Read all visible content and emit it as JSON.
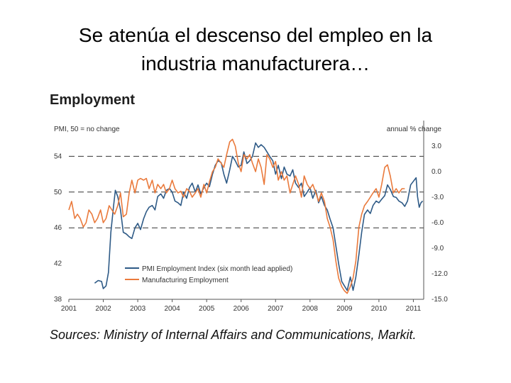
{
  "slide": {
    "title_line1": "Se atenúa el descenso del empleo en la",
    "title_line2": "industria manufacturera…"
  },
  "chart_heading": "Employment",
  "sources_text": "Sources: Ministry of Internal Affairs and Communications, Markit.",
  "colors": {
    "pmi": "#2e5a86",
    "mfg": "#ea7a3c",
    "axis": "#555555",
    "dash": "#333333"
  },
  "chart_data": {
    "type": "line",
    "title": "Employment",
    "left_axis_label": "PMI, 50 = no change",
    "right_axis_label": "annual % change",
    "left_ylim": [
      38,
      58
    ],
    "left_ticks": [
      "38",
      "42",
      "46",
      "50",
      "54"
    ],
    "right_ylim": [
      -15,
      6
    ],
    "right_ticks": [
      "-15.0",
      "-12.0",
      "-9.0",
      "-6.0",
      "-3.0",
      "0.0",
      "3.0"
    ],
    "xlim": [
      2001.0,
      2011.3
    ],
    "x_ticks": [
      "2001",
      "2002",
      "2003",
      "2004",
      "2005",
      "2006",
      "2007",
      "2008",
      "2009",
      "2010",
      "2011"
    ],
    "dashed_reference_levels": [
      54,
      50,
      46
    ],
    "series": [
      {
        "name": "PMI Employment Index (six month lead applied)",
        "axis": "left",
        "points": [
          [
            2001.75,
            39.8
          ],
          [
            2001.85,
            40.1
          ],
          [
            2001.95,
            40.0
          ],
          [
            2002.0,
            39.2
          ],
          [
            2002.08,
            39.5
          ],
          [
            2002.15,
            41.0
          ],
          [
            2002.22,
            45.5
          ],
          [
            2002.3,
            48.5
          ],
          [
            2002.35,
            50.2
          ],
          [
            2002.42,
            49.5
          ],
          [
            2002.5,
            48.0
          ],
          [
            2002.58,
            45.5
          ],
          [
            2002.67,
            45.3
          ],
          [
            2002.75,
            45.0
          ],
          [
            2002.83,
            44.8
          ],
          [
            2002.92,
            46.0
          ],
          [
            2003.0,
            46.5
          ],
          [
            2003.08,
            45.8
          ],
          [
            2003.17,
            47.0
          ],
          [
            2003.25,
            47.8
          ],
          [
            2003.33,
            48.3
          ],
          [
            2003.42,
            48.5
          ],
          [
            2003.5,
            48.0
          ],
          [
            2003.58,
            49.5
          ],
          [
            2003.67,
            49.8
          ],
          [
            2003.75,
            49.3
          ],
          [
            2003.83,
            50.2
          ],
          [
            2003.92,
            50.4
          ],
          [
            2004.0,
            50.0
          ],
          [
            2004.08,
            49.0
          ],
          [
            2004.17,
            48.8
          ],
          [
            2004.25,
            48.5
          ],
          [
            2004.33,
            50.0
          ],
          [
            2004.42,
            49.3
          ],
          [
            2004.5,
            50.5
          ],
          [
            2004.58,
            51.0
          ],
          [
            2004.67,
            50.0
          ],
          [
            2004.75,
            50.8
          ],
          [
            2004.83,
            49.8
          ],
          [
            2004.92,
            50.5
          ],
          [
            2005.0,
            51.0
          ],
          [
            2005.08,
            50.6
          ],
          [
            2005.17,
            52.0
          ],
          [
            2005.25,
            53.0
          ],
          [
            2005.33,
            53.5
          ],
          [
            2005.42,
            53.3
          ],
          [
            2005.5,
            52.0
          ],
          [
            2005.58,
            51.0
          ],
          [
            2005.67,
            52.5
          ],
          [
            2005.75,
            54.0
          ],
          [
            2005.83,
            53.5
          ],
          [
            2005.92,
            52.8
          ],
          [
            2006.0,
            53.0
          ],
          [
            2006.08,
            54.5
          ],
          [
            2006.17,
            53.2
          ],
          [
            2006.25,
            53.5
          ],
          [
            2006.33,
            54.0
          ],
          [
            2006.42,
            55.5
          ],
          [
            2006.5,
            55.0
          ],
          [
            2006.58,
            55.3
          ],
          [
            2006.67,
            55.0
          ],
          [
            2006.75,
            54.5
          ],
          [
            2006.83,
            54.0
          ],
          [
            2006.92,
            53.5
          ],
          [
            2007.0,
            52.0
          ],
          [
            2007.08,
            53.0
          ],
          [
            2007.17,
            51.5
          ],
          [
            2007.25,
            52.8
          ],
          [
            2007.33,
            52.0
          ],
          [
            2007.42,
            51.8
          ],
          [
            2007.5,
            52.5
          ],
          [
            2007.58,
            51.0
          ],
          [
            2007.67,
            50.5
          ],
          [
            2007.75,
            51.0
          ],
          [
            2007.83,
            49.5
          ],
          [
            2007.92,
            50.0
          ],
          [
            2008.0,
            50.5
          ],
          [
            2008.08,
            49.3
          ],
          [
            2008.17,
            50.2
          ],
          [
            2008.25,
            48.8
          ],
          [
            2008.33,
            49.5
          ],
          [
            2008.42,
            48.5
          ],
          [
            2008.5,
            48.0
          ],
          [
            2008.58,
            47.0
          ],
          [
            2008.67,
            46.0
          ],
          [
            2008.75,
            44.0
          ],
          [
            2008.83,
            42.0
          ],
          [
            2008.92,
            40.0
          ],
          [
            2009.0,
            39.5
          ],
          [
            2009.08,
            39.0
          ],
          [
            2009.17,
            40.5
          ],
          [
            2009.25,
            39.0
          ],
          [
            2009.33,
            40.5
          ],
          [
            2009.42,
            43.0
          ],
          [
            2009.5,
            45.5
          ],
          [
            2009.58,
            47.5
          ],
          [
            2009.67,
            48.0
          ],
          [
            2009.75,
            47.6
          ],
          [
            2009.83,
            48.5
          ],
          [
            2009.92,
            49.0
          ],
          [
            2010.0,
            48.8
          ],
          [
            2010.08,
            49.2
          ],
          [
            2010.17,
            49.6
          ],
          [
            2010.25,
            50.8
          ],
          [
            2010.33,
            50.3
          ],
          [
            2010.42,
            49.5
          ],
          [
            2010.5,
            49.4
          ],
          [
            2010.58,
            49.0
          ],
          [
            2010.67,
            48.8
          ],
          [
            2010.75,
            48.4
          ],
          [
            2010.83,
            49.0
          ],
          [
            2010.92,
            50.8
          ],
          [
            2011.0,
            51.2
          ],
          [
            2011.08,
            51.6
          ],
          [
            2011.12,
            49.5
          ],
          [
            2011.17,
            48.3
          ],
          [
            2011.22,
            48.8
          ],
          [
            2011.27,
            49.0
          ]
        ]
      },
      {
        "name": "Manufacturing Employment",
        "axis": "right",
        "points": [
          [
            2001.0,
            -4.5
          ],
          [
            2001.08,
            -3.5
          ],
          [
            2001.17,
            -5.5
          ],
          [
            2001.25,
            -5.0
          ],
          [
            2001.33,
            -5.5
          ],
          [
            2001.42,
            -6.5
          ],
          [
            2001.5,
            -6.0
          ],
          [
            2001.58,
            -4.5
          ],
          [
            2001.67,
            -5.0
          ],
          [
            2001.75,
            -6.0
          ],
          [
            2001.83,
            -5.5
          ],
          [
            2001.92,
            -4.5
          ],
          [
            2002.0,
            -6.0
          ],
          [
            2002.08,
            -5.5
          ],
          [
            2002.17,
            -4.0
          ],
          [
            2002.25,
            -4.5
          ],
          [
            2002.33,
            -5.0
          ],
          [
            2002.42,
            -4.0
          ],
          [
            2002.5,
            -2.5
          ],
          [
            2002.58,
            -5.3
          ],
          [
            2002.67,
            -5.0
          ],
          [
            2002.75,
            -2.5
          ],
          [
            2002.83,
            -1.0
          ],
          [
            2002.92,
            -2.5
          ],
          [
            2003.0,
            -1.0
          ],
          [
            2003.08,
            -0.8
          ],
          [
            2003.17,
            -1.0
          ],
          [
            2003.25,
            -0.8
          ],
          [
            2003.33,
            -2.0
          ],
          [
            2003.42,
            -1.0
          ],
          [
            2003.5,
            -2.5
          ],
          [
            2003.58,
            -1.5
          ],
          [
            2003.67,
            -2.0
          ],
          [
            2003.75,
            -1.5
          ],
          [
            2003.83,
            -2.5
          ],
          [
            2003.92,
            -2.0
          ],
          [
            2004.0,
            -1.0
          ],
          [
            2004.08,
            -2.0
          ],
          [
            2004.17,
            -2.5
          ],
          [
            2004.25,
            -2.3
          ],
          [
            2004.33,
            -3.0
          ],
          [
            2004.42,
            -2.0
          ],
          [
            2004.5,
            -2.3
          ],
          [
            2004.58,
            -3.0
          ],
          [
            2004.67,
            -2.5
          ],
          [
            2004.75,
            -2.0
          ],
          [
            2004.83,
            -3.0
          ],
          [
            2004.92,
            -1.5
          ],
          [
            2005.0,
            -2.5
          ],
          [
            2005.08,
            -1.2
          ],
          [
            2005.17,
            0.0
          ],
          [
            2005.25,
            0.5
          ],
          [
            2005.33,
            1.5
          ],
          [
            2005.42,
            1.0
          ],
          [
            2005.5,
            0.5
          ],
          [
            2005.58,
            2.0
          ],
          [
            2005.67,
            3.5
          ],
          [
            2005.75,
            3.8
          ],
          [
            2005.83,
            3.0
          ],
          [
            2005.92,
            1.0
          ],
          [
            2006.0,
            0.0
          ],
          [
            2006.08,
            2.0
          ],
          [
            2006.17,
            1.5
          ],
          [
            2006.25,
            2.0
          ],
          [
            2006.33,
            1.0
          ],
          [
            2006.42,
            0.0
          ],
          [
            2006.5,
            1.5
          ],
          [
            2006.58,
            0.5
          ],
          [
            2006.67,
            -1.5
          ],
          [
            2006.75,
            2.0
          ],
          [
            2006.83,
            1.5
          ],
          [
            2006.92,
            0.5
          ],
          [
            2007.0,
            1.2
          ],
          [
            2007.08,
            -1.0
          ],
          [
            2007.17,
            0.0
          ],
          [
            2007.25,
            -1.0
          ],
          [
            2007.33,
            -0.5
          ],
          [
            2007.42,
            -2.5
          ],
          [
            2007.5,
            -1.5
          ],
          [
            2007.58,
            -0.5
          ],
          [
            2007.67,
            -1.5
          ],
          [
            2007.75,
            -3.0
          ],
          [
            2007.83,
            -0.5
          ],
          [
            2007.92,
            -1.5
          ],
          [
            2008.0,
            -2.0
          ],
          [
            2008.08,
            -1.5
          ],
          [
            2008.17,
            -2.5
          ],
          [
            2008.25,
            -3.5
          ],
          [
            2008.33,
            -2.5
          ],
          [
            2008.42,
            -3.5
          ],
          [
            2008.5,
            -5.5
          ],
          [
            2008.58,
            -6.5
          ],
          [
            2008.67,
            -8.0
          ],
          [
            2008.75,
            -10.5
          ],
          [
            2008.83,
            -12.5
          ],
          [
            2008.92,
            -13.5
          ],
          [
            2009.0,
            -14.0
          ],
          [
            2009.08,
            -14.3
          ],
          [
            2009.17,
            -13.5
          ],
          [
            2009.25,
            -12.5
          ],
          [
            2009.33,
            -10.5
          ],
          [
            2009.42,
            -6.5
          ],
          [
            2009.5,
            -5.0
          ],
          [
            2009.58,
            -4.0
          ],
          [
            2009.67,
            -3.5
          ],
          [
            2009.75,
            -3.0
          ],
          [
            2009.83,
            -2.5
          ],
          [
            2009.92,
            -2.0
          ],
          [
            2010.0,
            -3.0
          ],
          [
            2010.08,
            -1.5
          ],
          [
            2010.17,
            0.5
          ],
          [
            2010.25,
            0.8
          ],
          [
            2010.33,
            -0.5
          ],
          [
            2010.42,
            -2.5
          ],
          [
            2010.5,
            -2.0
          ],
          [
            2010.58,
            -2.5
          ],
          [
            2010.67,
            -2.0
          ],
          [
            2010.75,
            -2.0
          ]
        ]
      }
    ]
  }
}
